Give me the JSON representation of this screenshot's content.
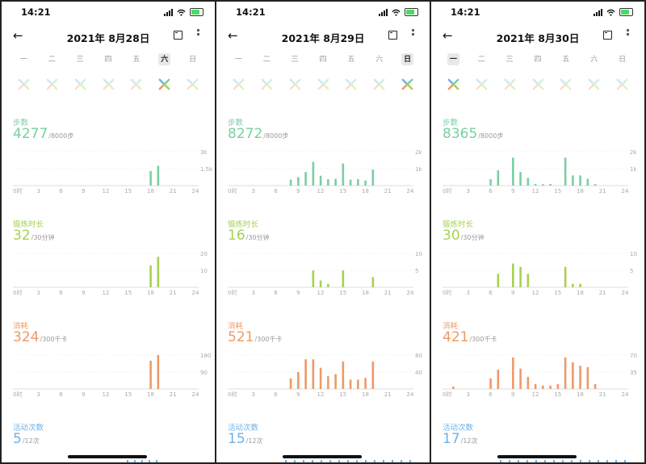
{
  "colors": {
    "steps": "#79cfa1",
    "exercise": "#a6d152",
    "calories": "#ee9a66",
    "activity": "#6db1e6"
  },
  "status_time": "14:21",
  "weekdays": [
    "一",
    "二",
    "三",
    "四",
    "五",
    "六",
    "日"
  ],
  "x_ticks": [
    "0时",
    "3",
    "6",
    "9",
    "12",
    "15",
    "18",
    "21",
    "24"
  ],
  "labels": {
    "steps": "步数",
    "exercise": "锻炼时长",
    "calories": "消耗",
    "activity": "活动次数"
  },
  "phones": [
    {
      "date": "2021年 8月28日",
      "selected_day": 5,
      "steps": {
        "value": "4277",
        "goal": "/8000步",
        "yticks": [
          "3k",
          "1.5k"
        ],
        "ymax": 3000,
        "bars": [
          [
            18,
            1300
          ],
          [
            19,
            1750
          ]
        ]
      },
      "exercise": {
        "value": "32",
        "goal": "/30分钟",
        "yticks": [
          "20",
          "10"
        ],
        "ymax": 20,
        "bars": [
          [
            18,
            13
          ],
          [
            19,
            18
          ]
        ]
      },
      "calories": {
        "value": "324",
        "goal": "/300千卡",
        "yticks": [
          "180",
          "90"
        ],
        "ymax": 180,
        "bars": [
          [
            18,
            150
          ],
          [
            19,
            180
          ]
        ]
      },
      "activity": {
        "value": "5",
        "goal": "/12次"
      }
    },
    {
      "date": "2021年 8月29日",
      "selected_day": 6,
      "steps": {
        "value": "8272",
        "goal": "/8000步",
        "yticks": [
          "2k",
          "1k"
        ],
        "ymax": 2000,
        "bars": [
          [
            8,
            350
          ],
          [
            9,
            500
          ],
          [
            10,
            800
          ],
          [
            11,
            1400
          ],
          [
            12,
            580
          ],
          [
            13,
            380
          ],
          [
            14,
            400
          ],
          [
            15,
            1300
          ],
          [
            16,
            350
          ],
          [
            17,
            380
          ],
          [
            18,
            300
          ],
          [
            19,
            950
          ]
        ]
      },
      "exercise": {
        "value": "16",
        "goal": "/30分钟",
        "yticks": [
          "10",
          "5"
        ],
        "ymax": 10,
        "bars": [
          [
            11,
            5
          ],
          [
            12,
            2
          ],
          [
            13,
            1
          ],
          [
            15,
            5
          ],
          [
            19,
            3
          ]
        ]
      },
      "calories": {
        "value": "521",
        "goal": "/300千卡",
        "yticks": [
          "80",
          "40"
        ],
        "ymax": 80,
        "bars": [
          [
            8,
            25
          ],
          [
            9,
            40
          ],
          [
            10,
            70
          ],
          [
            11,
            70
          ],
          [
            12,
            50
          ],
          [
            13,
            30
          ],
          [
            14,
            35
          ],
          [
            15,
            65
          ],
          [
            16,
            22
          ],
          [
            17,
            22
          ],
          [
            18,
            26
          ],
          [
            19,
            65
          ]
        ]
      },
      "activity": {
        "value": "15",
        "goal": "/12次"
      }
    },
    {
      "date": "2021年 8月30日",
      "selected_day": 0,
      "steps": {
        "value": "8365",
        "goal": "/8000步",
        "yticks": [
          "2k",
          "1k"
        ],
        "ymax": 2000,
        "bars": [
          [
            6,
            380
          ],
          [
            7,
            900
          ],
          [
            9,
            1650
          ],
          [
            10,
            800
          ],
          [
            11,
            450
          ],
          [
            12,
            100
          ],
          [
            13,
            80
          ],
          [
            14,
            100
          ],
          [
            16,
            1650
          ],
          [
            17,
            600
          ],
          [
            18,
            600
          ],
          [
            19,
            400
          ],
          [
            20,
            90
          ]
        ]
      },
      "exercise": {
        "value": "30",
        "goal": "/30分钟",
        "yticks": [
          "10",
          "5"
        ],
        "ymax": 10,
        "bars": [
          [
            7,
            4
          ],
          [
            9,
            7
          ],
          [
            10,
            6
          ],
          [
            11,
            4
          ],
          [
            16,
            6
          ],
          [
            17,
            1
          ],
          [
            18,
            1
          ]
        ]
      },
      "calories": {
        "value": "421",
        "goal": "/300千卡",
        "yticks": [
          "70",
          "35"
        ],
        "ymax": 70,
        "bars": [
          [
            1,
            5
          ],
          [
            6,
            22
          ],
          [
            7,
            40
          ],
          [
            9,
            65
          ],
          [
            10,
            42
          ],
          [
            11,
            25
          ],
          [
            12,
            10
          ],
          [
            13,
            7
          ],
          [
            14,
            7
          ],
          [
            15,
            10
          ],
          [
            16,
            65
          ],
          [
            17,
            55
          ],
          [
            18,
            48
          ],
          [
            19,
            45
          ],
          [
            20,
            10
          ]
        ]
      },
      "activity": {
        "value": "17",
        "goal": "/12次"
      }
    }
  ]
}
